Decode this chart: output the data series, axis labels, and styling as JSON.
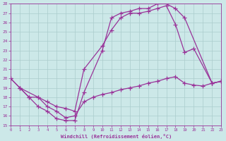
{
  "xlabel": "Windchill (Refroidissement éolien,°C)",
  "bg_color": "#cce8e8",
  "grid_color": "#aacccc",
  "line_color": "#993399",
  "xmin": 0,
  "xmax": 23,
  "ymin": 15,
  "ymax": 28,
  "line1_x": [
    0,
    1,
    2,
    3,
    4,
    5,
    6,
    7,
    8,
    10,
    11,
    12,
    13,
    14,
    15,
    16,
    17,
    18,
    19,
    22,
    23
  ],
  "line1_y": [
    20,
    19,
    18,
    17,
    16.5,
    15.7,
    15.5,
    15.5,
    18.5,
    23.0,
    26.5,
    27.0,
    27.2,
    27.5,
    27.5,
    28.0,
    28.0,
    27.5,
    26.5,
    19.5,
    19.7
  ],
  "line2_x": [
    0,
    1,
    3,
    4,
    5,
    6,
    7,
    8,
    10,
    11,
    12,
    13,
    14,
    15,
    16,
    17,
    18,
    19,
    20,
    22,
    23
  ],
  "line2_y": [
    20,
    19,
    18,
    17.5,
    17.0,
    16.8,
    16.5,
    21.0,
    23.5,
    25.2,
    26.5,
    27.0,
    27.0,
    27.2,
    27.5,
    27.8,
    25.8,
    22.8,
    23.2,
    19.5,
    19.7
  ],
  "line3_x": [
    1,
    2,
    3,
    4,
    5,
    6,
    7,
    8,
    9,
    10,
    11,
    12,
    13,
    14,
    15,
    16,
    17,
    18,
    19,
    20,
    21,
    22,
    23
  ],
  "line3_y": [
    19.0,
    18.0,
    18.0,
    17.0,
    16.5,
    15.8,
    16.0,
    17.5,
    18.0,
    18.3,
    18.5,
    18.8,
    19.0,
    19.2,
    19.5,
    19.7,
    20.0,
    20.2,
    19.5,
    19.3,
    19.2,
    19.5,
    19.7
  ]
}
